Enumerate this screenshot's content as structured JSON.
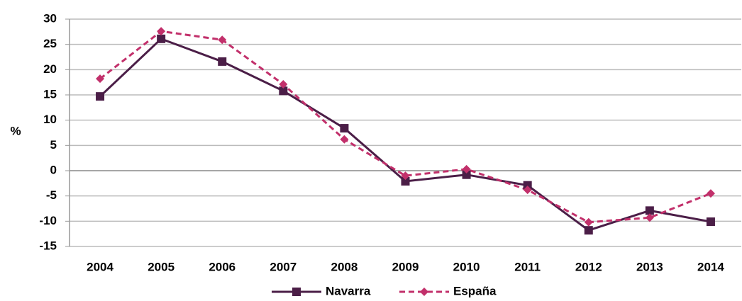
{
  "chart_data": {
    "type": "line",
    "y_label": "%",
    "categories": [
      "2004",
      "2005",
      "2006",
      "2007",
      "2008",
      "2009",
      "2010",
      "2011",
      "2012",
      "2013",
      "2014"
    ],
    "series": [
      {
        "name": "Navarra",
        "color": "#4b1e47",
        "marker": "square",
        "dashed": false,
        "values": [
          14.7,
          26.1,
          21.6,
          15.8,
          8.4,
          -2.1,
          -0.8,
          -2.9,
          -11.8,
          -7.9,
          -10.1
        ]
      },
      {
        "name": "España",
        "color": "#c2306b",
        "marker": "diamond",
        "dashed": true,
        "values": [
          18.2,
          27.6,
          25.9,
          17.1,
          6.2,
          -1.0,
          0.3,
          -3.8,
          -10.2,
          -9.3,
          -4.5
        ]
      }
    ],
    "ylim": [
      -15,
      30
    ],
    "yticks": [
      -15,
      -10,
      -5,
      0,
      5,
      10,
      15,
      20,
      25,
      30
    ],
    "grid": true,
    "legend": "bottom"
  }
}
